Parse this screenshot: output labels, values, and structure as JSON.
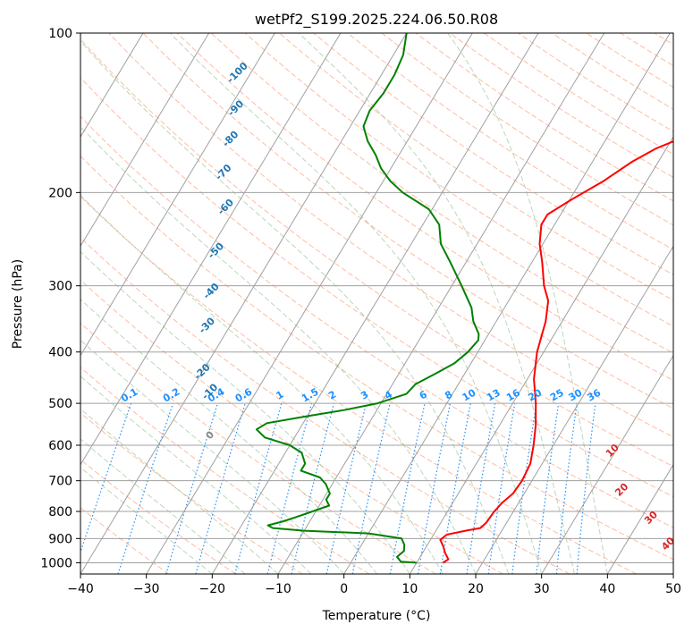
{
  "chart_data": {
    "type": "line",
    "title": "wetPf2_S199.2025.224.06.50.R08",
    "xlabel": "Temperature (°C)",
    "ylabel": "Pressure (hPa)",
    "xlim": [
      -40,
      50
    ],
    "ylim": [
      1050,
      100
    ],
    "y_scale": "log",
    "x_ticks": [
      "−40",
      "−30",
      "−20",
      "−10",
      "0",
      "10",
      "20",
      "30",
      "40",
      "50"
    ],
    "y_ticks": [
      "100",
      "200",
      "300",
      "400",
      "500",
      "600",
      "700",
      "800",
      "900",
      "1000"
    ],
    "grid": true,
    "colors": {
      "temperature": "#ff0000",
      "dewpoint": "#008000",
      "isotherm_grid": "#a0a0a0",
      "dry_adiabat": "#ffa07a",
      "moist_adiabat": "#8fbc8f",
      "mixing_ratio": "#1e90ff",
      "dry_label": "#d62728",
      "moist_label": "#1f77b4",
      "theta_e": "#d2b48c"
    },
    "series": [
      {
        "key": "temperature",
        "points": [
          {
            "p": 1000,
            "t": 14.0
          },
          {
            "p": 985,
            "t": 14.5
          },
          {
            "p": 960,
            "t": 13.5
          },
          {
            "p": 930,
            "t": 12.5
          },
          {
            "p": 905,
            "t": 11.5
          },
          {
            "p": 885,
            "t": 12.0
          },
          {
            "p": 870,
            "t": 14.5
          },
          {
            "p": 860,
            "t": 16.5
          },
          {
            "p": 840,
            "t": 16.9
          },
          {
            "p": 800,
            "t": 17.1
          },
          {
            "p": 770,
            "t": 17.5
          },
          {
            "p": 740,
            "t": 18.3
          },
          {
            "p": 700,
            "t": 18.5
          },
          {
            "p": 650,
            "t": 18.2
          },
          {
            "p": 600,
            "t": 17.0
          },
          {
            "p": 550,
            "t": 15.5
          },
          {
            "p": 500,
            "t": 13.5
          },
          {
            "p": 450,
            "t": 11.0
          },
          {
            "p": 400,
            "t": 9.0
          },
          {
            "p": 350,
            "t": 7.5
          },
          {
            "p": 320,
            "t": 6.0
          },
          {
            "p": 300,
            "t": 4.0
          },
          {
            "p": 270,
            "t": 1.5
          },
          {
            "p": 250,
            "t": -0.5
          },
          {
            "p": 230,
            "t": -2.0
          },
          {
            "p": 220,
            "t": -2.0
          },
          {
            "p": 205,
            "t": 0.5
          },
          {
            "p": 190,
            "t": 3.5
          },
          {
            "p": 175,
            "t": 6.0
          },
          {
            "p": 165,
            "t": 8.5
          },
          {
            "p": 155,
            "t": 12.5
          },
          {
            "p": 140,
            "t": 15.5
          },
          {
            "p": 125,
            "t": 17.5
          },
          {
            "p": 115,
            "t": 18.5
          },
          {
            "p": 105,
            "t": 20.0
          },
          {
            "p": 100,
            "t": 21.5
          }
        ]
      },
      {
        "key": "dewpoint",
        "points": [
          {
            "p": 1000,
            "t": 10.0
          },
          {
            "p": 995,
            "t": 7.5
          },
          {
            "p": 975,
            "t": 6.5
          },
          {
            "p": 950,
            "t": 7.0
          },
          {
            "p": 925,
            "t": 6.5
          },
          {
            "p": 900,
            "t": 5.5
          },
          {
            "p": 880,
            "t": 0.0
          },
          {
            "p": 870,
            "t": -10.0
          },
          {
            "p": 860,
            "t": -15.0
          },
          {
            "p": 850,
            "t": -16.0
          },
          {
            "p": 835,
            "t": -14.0
          },
          {
            "p": 820,
            "t": -12.5
          },
          {
            "p": 800,
            "t": -10.5
          },
          {
            "p": 780,
            "t": -8.5
          },
          {
            "p": 760,
            "t": -9.5
          },
          {
            "p": 740,
            "t": -9.5
          },
          {
            "p": 710,
            "t": -11.0
          },
          {
            "p": 690,
            "t": -12.5
          },
          {
            "p": 670,
            "t": -16.0
          },
          {
            "p": 650,
            "t": -16.0
          },
          {
            "p": 620,
            "t": -17.5
          },
          {
            "p": 600,
            "t": -20.0
          },
          {
            "p": 580,
            "t": -24.5
          },
          {
            "p": 560,
            "t": -26.5
          },
          {
            "p": 545,
            "t": -25.5
          },
          {
            "p": 530,
            "t": -20.5
          },
          {
            "p": 515,
            "t": -15.0
          },
          {
            "p": 500,
            "t": -10.5
          },
          {
            "p": 480,
            "t": -7.0
          },
          {
            "p": 460,
            "t": -6.5
          },
          {
            "p": 440,
            "t": -4.5
          },
          {
            "p": 420,
            "t": -2.5
          },
          {
            "p": 400,
            "t": -1.5
          },
          {
            "p": 380,
            "t": -1.0
          },
          {
            "p": 370,
            "t": -1.5
          },
          {
            "p": 350,
            "t": -3.5
          },
          {
            "p": 330,
            "t": -5.0
          },
          {
            "p": 300,
            "t": -8.5
          },
          {
            "p": 270,
            "t": -12.5
          },
          {
            "p": 250,
            "t": -15.5
          },
          {
            "p": 230,
            "t": -17.5
          },
          {
            "p": 215,
            "t": -20.5
          },
          {
            "p": 200,
            "t": -26.0
          },
          {
            "p": 190,
            "t": -29.0
          },
          {
            "p": 180,
            "t": -31.5
          },
          {
            "p": 170,
            "t": -33.5
          },
          {
            "p": 160,
            "t": -36.0
          },
          {
            "p": 150,
            "t": -38.0
          },
          {
            "p": 140,
            "t": -38.5
          },
          {
            "p": 130,
            "t": -38.0
          },
          {
            "p": 120,
            "t": -38.0
          },
          {
            "p": 110,
            "t": -38.5
          },
          {
            "p": 100,
            "t": -40.0
          }
        ]
      }
    ],
    "mixing_ratio_labels": [
      "0.1",
      "0.2",
      "0.4",
      "0.6",
      "1",
      "1.5",
      "2",
      "3",
      "4",
      "6",
      "8",
      "10",
      "13",
      "16",
      "20",
      "25",
      "30",
      "36"
    ],
    "moist_adiabat_labels": [
      "-100",
      "-90",
      "-80",
      "-70",
      "-60",
      "-50",
      "-40",
      "-30",
      "-20",
      "-10",
      "0"
    ],
    "dry_adiabat_labels": [
      "10",
      "20",
      "30",
      "40"
    ]
  }
}
